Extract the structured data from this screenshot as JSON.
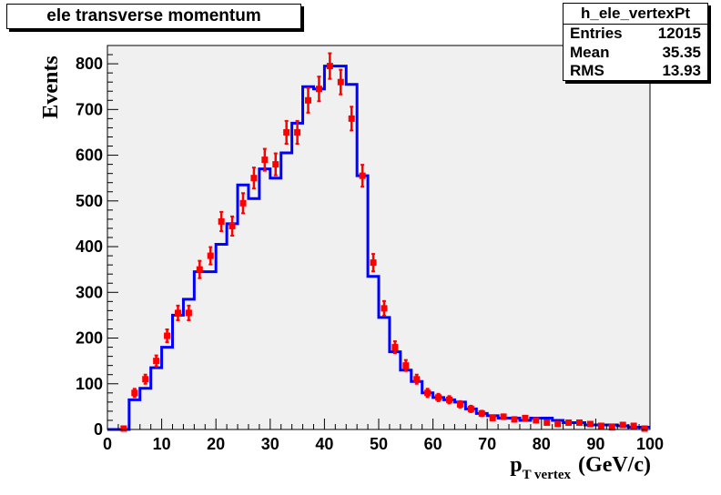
{
  "chart_data": {
    "type": "histogram",
    "title": "ele transverse momentum",
    "xlabel_main": "p",
    "xlabel_sub": "T vertex",
    "xlabel_unit": "(GeV/c)",
    "ylabel": "Events",
    "xlim": [
      0,
      100
    ],
    "ylim": [
      0,
      840
    ],
    "x_ticks": [
      0,
      10,
      20,
      30,
      40,
      50,
      60,
      70,
      80,
      90,
      100
    ],
    "y_ticks": [
      0,
      100,
      200,
      300,
      400,
      500,
      600,
      700,
      800
    ],
    "colors": {
      "histogram": "#0000ff",
      "points": "#ff0000",
      "frame_fill": "#f0f0f0"
    },
    "histogram": {
      "name": "h_ele_vertexPt",
      "bin_edges": [
        0,
        2,
        4,
        6,
        8,
        10,
        12,
        14,
        16,
        18,
        20,
        22,
        24,
        26,
        28,
        30,
        32,
        34,
        36,
        38,
        40,
        42,
        44,
        46,
        48,
        50,
        52,
        54,
        56,
        58,
        60,
        62,
        64,
        66,
        68,
        70,
        72,
        74,
        76,
        78,
        80,
        82,
        84,
        86,
        88,
        90,
        92,
        94,
        96,
        98,
        100
      ],
      "values": [
        0,
        0,
        65,
        90,
        135,
        180,
        250,
        285,
        345,
        345,
        405,
        450,
        535,
        505,
        570,
        550,
        605,
        670,
        750,
        745,
        795,
        795,
        755,
        555,
        335,
        245,
        170,
        130,
        105,
        80,
        70,
        65,
        60,
        45,
        35,
        30,
        25,
        25,
        20,
        25,
        25,
        20,
        15,
        15,
        10,
        10,
        10,
        8,
        5,
        5
      ]
    },
    "points": {
      "x": [
        3,
        5,
        7,
        9,
        11,
        13,
        15,
        17,
        19,
        21,
        23,
        25,
        27,
        29,
        31,
        33,
        35,
        37,
        39,
        41,
        43,
        45,
        47,
        49,
        51,
        53,
        55,
        57,
        59,
        61,
        63,
        65,
        67,
        69,
        71,
        73,
        75,
        77,
        79,
        81,
        83,
        85,
        87,
        89,
        91,
        93,
        95,
        97,
        99
      ],
      "y": [
        2,
        80,
        110,
        150,
        205,
        255,
        255,
        350,
        380,
        455,
        445,
        495,
        550,
        590,
        580,
        650,
        650,
        720,
        745,
        795,
        760,
        680,
        555,
        365,
        265,
        180,
        140,
        110,
        80,
        70,
        65,
        55,
        45,
        35,
        25,
        28,
        22,
        25,
        20,
        15,
        12,
        15,
        15,
        12,
        8,
        5,
        10,
        8,
        2
      ],
      "err": [
        2,
        9,
        10,
        12,
        14,
        16,
        16,
        19,
        19,
        21,
        21,
        22,
        23,
        24,
        24,
        25,
        25,
        27,
        27,
        28,
        27,
        26,
        24,
        19,
        16,
        13,
        12,
        10,
        9,
        8,
        8,
        7,
        7,
        6,
        5,
        5,
        5,
        5,
        4,
        4,
        3,
        4,
        4,
        3,
        3,
        2,
        3,
        3,
        1
      ]
    }
  },
  "stats": {
    "name": "h_ele_vertexPt",
    "rows": [
      {
        "label": "Entries",
        "value": "12015"
      },
      {
        "label": "Mean",
        "value": "35.35"
      },
      {
        "label": "RMS",
        "value": "13.93"
      }
    ]
  }
}
